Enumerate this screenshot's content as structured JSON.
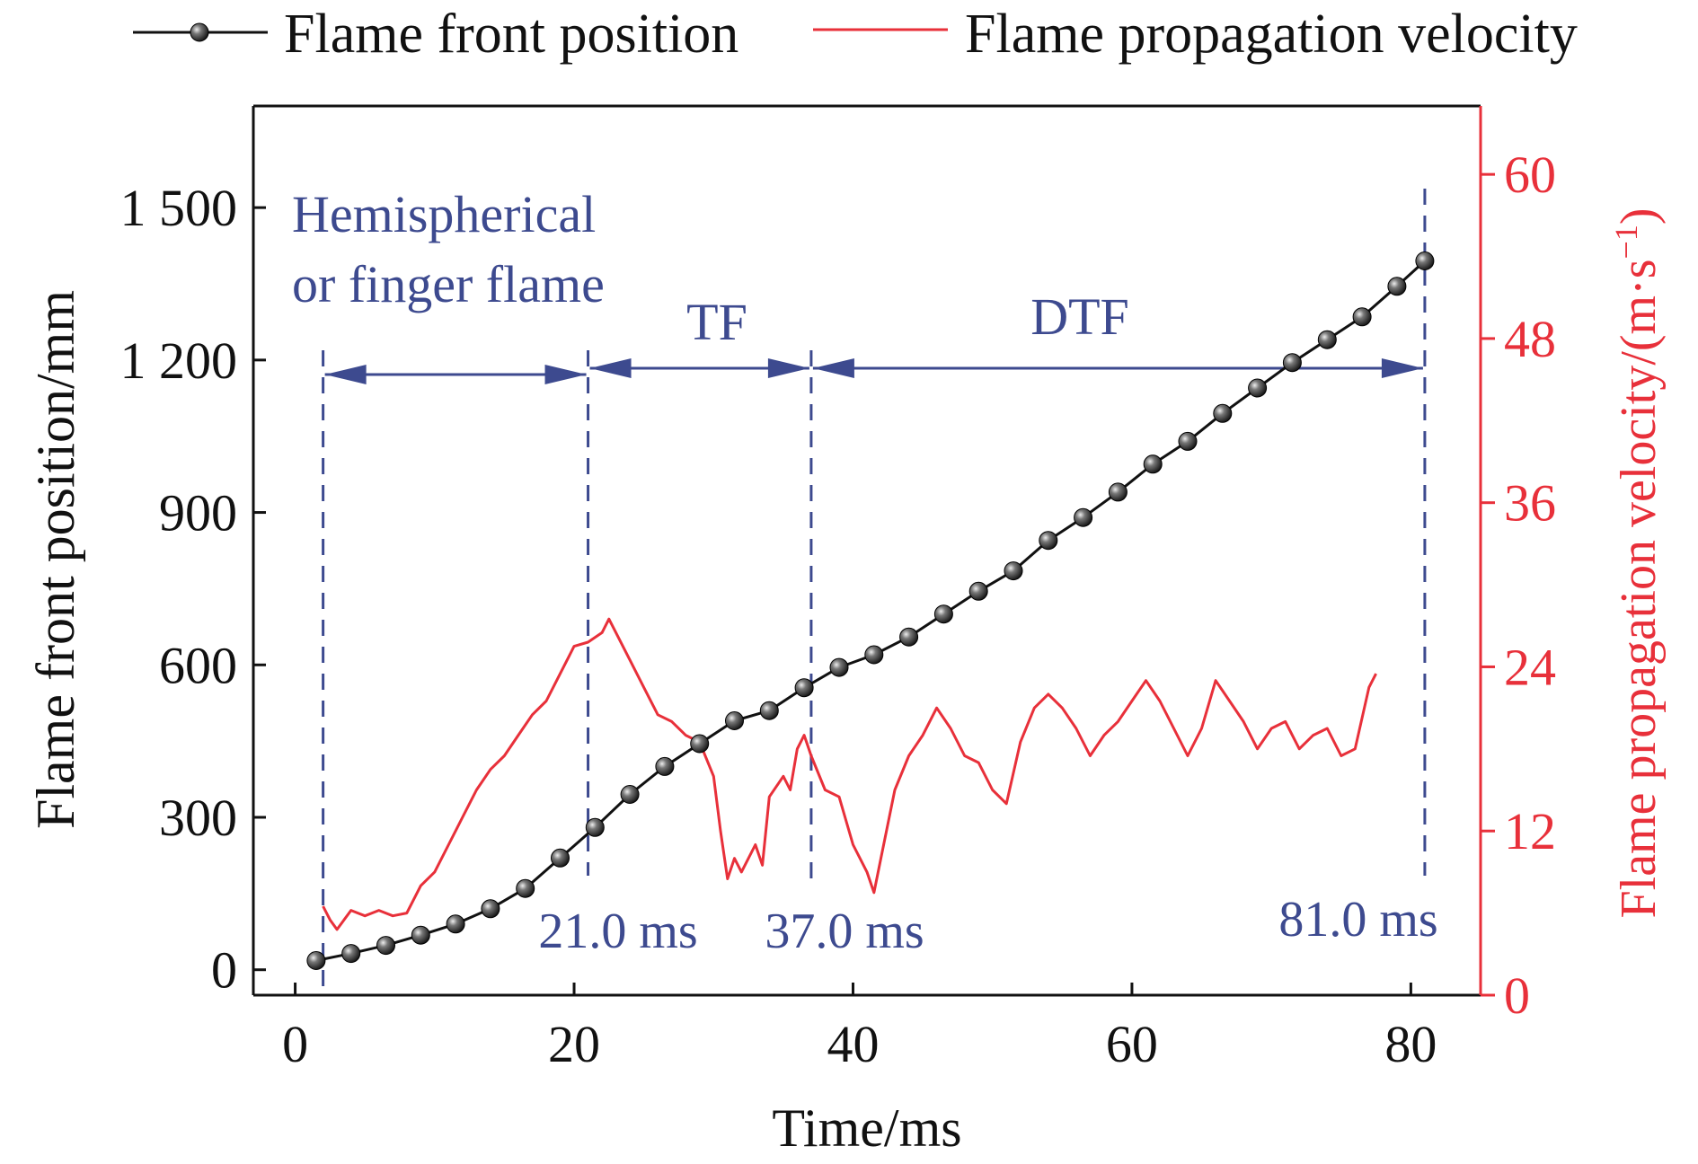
{
  "chart_data": {
    "type": "line",
    "title": "",
    "xlabel": "Time/ms",
    "ylabel_left": "Flame front position/mm",
    "ylabel_right_main": "Flame propagation velocity/(m·s",
    "ylabel_right_sup": "−1",
    "ylabel_right_close": ")",
    "xlim": [
      -3,
      85
    ],
    "ylim_left": [
      -50,
      1700
    ],
    "ylim_right": [
      0,
      65
    ],
    "x_ticks": [
      0,
      20,
      40,
      60,
      80
    ],
    "x_tick_labels": [
      "0",
      "20",
      "40",
      "60",
      "80"
    ],
    "yleft_ticks": [
      0,
      300,
      600,
      900,
      1200,
      1500
    ],
    "yleft_tick_labels": [
      "0",
      "300",
      "600",
      "900",
      "1 200",
      "1 500"
    ],
    "yright_ticks": [
      0,
      12,
      24,
      36,
      48,
      60
    ],
    "yright_tick_labels": [
      "0",
      "12",
      "24",
      "36",
      "48",
      "60"
    ],
    "grid": false,
    "legend_position": "top",
    "colors": {
      "position": "#111111",
      "velocity": "#e8303a",
      "annotation": "#3d4a8f",
      "right_axis": "#e8303a"
    },
    "series": [
      {
        "name": "Flame front position",
        "axis": "left",
        "marker": "sphere",
        "x": [
          1.5,
          4.0,
          6.5,
          9.0,
          11.5,
          14.0,
          16.5,
          19.0,
          21.5,
          24.0,
          26.5,
          29.0,
          31.5,
          34.0,
          36.5,
          39.0,
          41.5,
          44.0,
          46.5,
          49.0,
          51.5,
          54.0,
          56.5,
          59.0,
          61.5,
          64.0,
          66.5,
          69.0,
          71.5,
          74.0,
          76.5,
          79.0,
          81.0
        ],
        "y": [
          18,
          32,
          48,
          68,
          90,
          120,
          160,
          220,
          280,
          345,
          400,
          445,
          490,
          510,
          555,
          595,
          620,
          655,
          700,
          745,
          785,
          845,
          890,
          940,
          995,
          1040,
          1095,
          1145,
          1195,
          1240,
          1285,
          1345,
          1395
        ]
      },
      {
        "name": "Flame propagation velocity",
        "axis": "right",
        "x": [
          2.0,
          2.5,
          3.0,
          4.0,
          5.0,
          6.0,
          7.0,
          8.0,
          9.0,
          10.0,
          11.0,
          12.0,
          13.0,
          14.0,
          15.0,
          16.0,
          17.0,
          18.0,
          19.0,
          20.0,
          21.0,
          22.0,
          22.5,
          23.0,
          24.0,
          25.0,
          26.0,
          27.0,
          28.0,
          29.0,
          30.0,
          30.5,
          31.0,
          31.5,
          32.0,
          33.0,
          33.5,
          34.0,
          35.0,
          35.5,
          36.0,
          36.5,
          37.0,
          38.0,
          39.0,
          40.0,
          41.0,
          41.5,
          42.0,
          43.0,
          44.0,
          45.0,
          46.0,
          47.0,
          48.0,
          49.0,
          50.0,
          51.0,
          52.0,
          53.0,
          54.0,
          55.0,
          56.0,
          57.0,
          58.0,
          59.0,
          60.0,
          61.0,
          62.0,
          63.0,
          64.0,
          65.0,
          66.0,
          67.0,
          68.0,
          69.0,
          70.0,
          71.0,
          72.0,
          73.0,
          74.0,
          75.0,
          76.0,
          77.0,
          77.5
        ],
        "y": [
          6.5,
          5.5,
          4.8,
          6.2,
          5.8,
          6.2,
          5.8,
          6.0,
          8.0,
          9.0,
          11.0,
          13.0,
          15.0,
          16.5,
          17.5,
          19.0,
          20.5,
          21.5,
          23.5,
          25.5,
          25.8,
          26.5,
          27.5,
          26.5,
          24.5,
          22.5,
          20.5,
          20.0,
          19.0,
          18.5,
          16.0,
          12.0,
          8.5,
          10.0,
          9.0,
          11.0,
          9.5,
          14.5,
          16.0,
          15.0,
          18.0,
          19.0,
          17.5,
          15.0,
          14.5,
          11.0,
          9.0,
          7.5,
          10.0,
          15.0,
          17.5,
          19.0,
          21.0,
          19.5,
          17.5,
          17.0,
          15.0,
          14.0,
          18.5,
          21.0,
          22.0,
          21.0,
          19.5,
          17.5,
          19.0,
          20.0,
          21.5,
          23.0,
          21.5,
          19.5,
          17.5,
          19.5,
          23.0,
          21.5,
          20.0,
          18.0,
          19.5,
          20.0,
          18.0,
          19.0,
          19.5,
          17.5,
          18.0,
          22.5,
          23.5
        ]
      }
    ],
    "annotations": {
      "phase1_label_line1": "Hemispherical",
      "phase1_label_line2": "or finger flame",
      "phase2_label": "TF",
      "phase3_label": "DTF",
      "boundaries": [
        2.0,
        21.0,
        37.0,
        81.0
      ],
      "boundary_labels": [
        "",
        "21.0 ms",
        "37.0 ms",
        "81.0 ms"
      ]
    }
  }
}
